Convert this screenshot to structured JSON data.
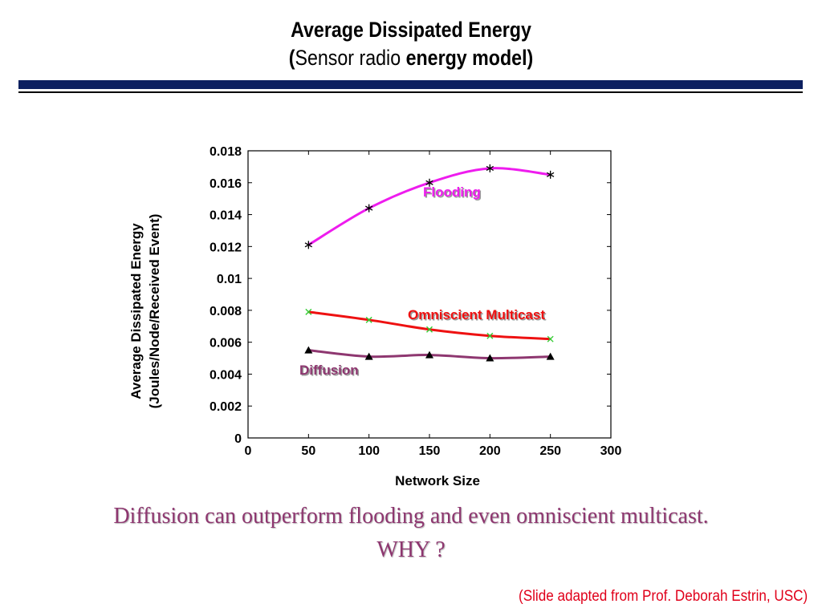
{
  "slide": {
    "title_line1": "Average Dissipated Energy",
    "title_line2_open": "(",
    "title_line2_highlight": "Sensor radio",
    "title_line2_rest": " energy model)",
    "caption_line1": "Diffusion can outperform flooding and even omniscient multicast.",
    "caption_line2": "WHY ?",
    "credit": "(Slide adapted from Prof. Deborah Estrin, USC)",
    "colors": {
      "header_bar": "#0d2060",
      "caption": "#8e3770",
      "credit": "#e0001a"
    }
  },
  "chart_data": {
    "type": "line",
    "title": "",
    "xlabel": "Network Size",
    "ylabel_line1": "Average Dissipated Energy",
    "ylabel_line2": "(Joules/Node/Received Event)",
    "xlim": [
      0,
      300
    ],
    "ylim": [
      0,
      0.018
    ],
    "x_ticks": [
      "0",
      "50",
      "100",
      "150",
      "200",
      "250",
      "300"
    ],
    "y_ticks": [
      "0",
      "0.002",
      "0.004",
      "0.006",
      "0.008",
      "0.01",
      "0.012",
      "0.014",
      "0.016",
      "0.018"
    ],
    "grid": false,
    "series": [
      {
        "name": "Flooding",
        "color": "#ee1cee",
        "marker": "asterisk",
        "x": [
          50,
          100,
          150,
          200,
          250
        ],
        "values": [
          0.0121,
          0.0144,
          0.016,
          0.0169,
          0.0165
        ]
      },
      {
        "name": "Omniscient Multicast",
        "color": "#ee1111",
        "marker": "x",
        "marker_color": "#33cc33",
        "x": [
          50,
          100,
          150,
          200,
          250
        ],
        "values": [
          0.0079,
          0.0074,
          0.0068,
          0.0064,
          0.0062
        ]
      },
      {
        "name": "Diffusion",
        "color": "#8e3770",
        "marker": "triangle",
        "x": [
          50,
          100,
          150,
          200,
          250
        ],
        "values": [
          0.0055,
          0.0051,
          0.0052,
          0.005,
          0.0051
        ]
      }
    ]
  }
}
